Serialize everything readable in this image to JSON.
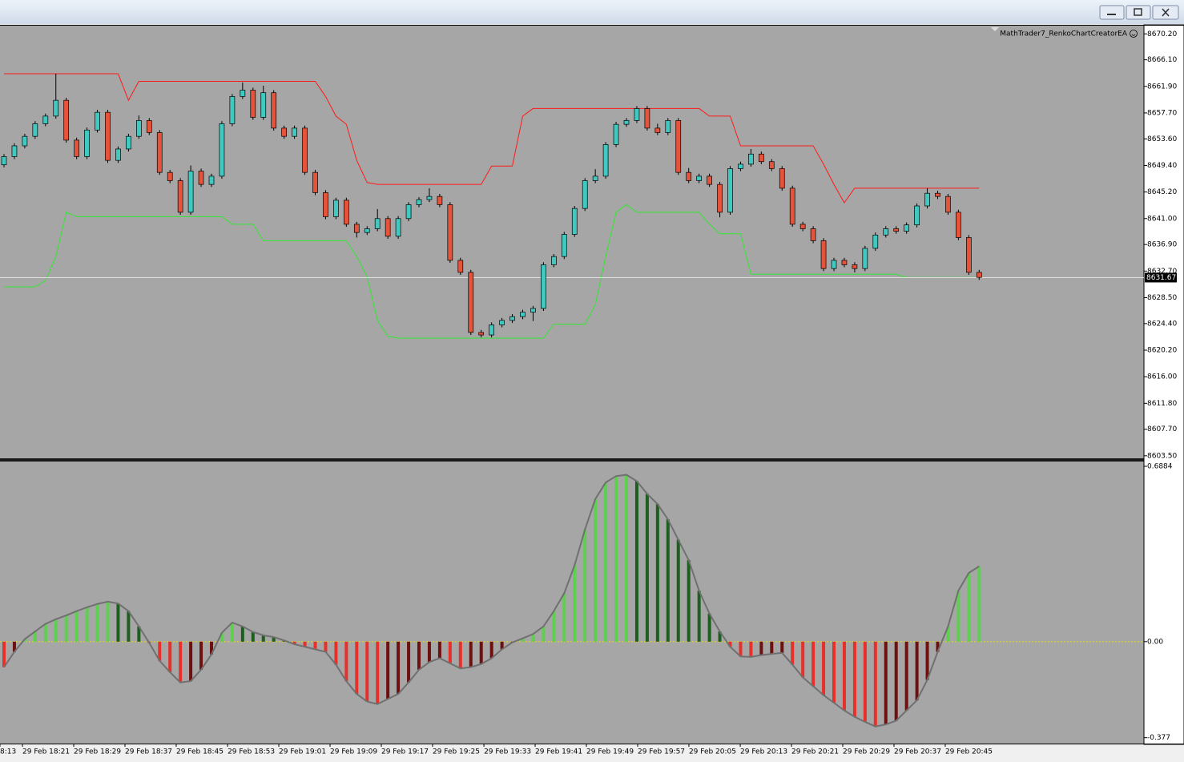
{
  "window": {
    "buttons": [
      "minimize",
      "restore",
      "close"
    ]
  },
  "chart_data": [
    {
      "type": "candlestick",
      "title": "MathTrader7_RenkoChartCreatorEA",
      "up_color": "#3fc9c0",
      "down_color": "#e5533a",
      "candles": [
        [
          8649.5,
          8651.2,
          8649.1,
          8650.8
        ],
        [
          8650.8,
          8652.9,
          8650.4,
          8652.5
        ],
        [
          8652.5,
          8654.4,
          8652.1,
          8654.0
        ],
        [
          8654.0,
          8656.4,
          8653.6,
          8656.0
        ],
        [
          8656.0,
          8657.6,
          8655.6,
          8657.2
        ],
        [
          8657.2,
          8663.9,
          8656.8,
          8659.7
        ],
        [
          8659.7,
          8660.1,
          8653.0,
          8653.4
        ],
        [
          8653.4,
          8653.8,
          8650.4,
          8650.8
        ],
        [
          8650.8,
          8655.4,
          8650.4,
          8655.0
        ],
        [
          8655.0,
          8658.2,
          8654.6,
          8657.8
        ],
        [
          8657.8,
          8658.2,
          8649.8,
          8650.2
        ],
        [
          8650.2,
          8652.4,
          8649.8,
          8652.0
        ],
        [
          8652.0,
          8654.4,
          8651.6,
          8654.0
        ],
        [
          8654.0,
          8657.3,
          8653.6,
          8656.5
        ],
        [
          8656.5,
          8656.9,
          8654.2,
          8654.6
        ],
        [
          8654.6,
          8655.0,
          8647.9,
          8648.3
        ],
        [
          8648.3,
          8648.7,
          8646.6,
          8647.0
        ],
        [
          8647.0,
          8647.4,
          8641.6,
          8642.0
        ],
        [
          8642.0,
          8649.4,
          8641.6,
          8648.5
        ],
        [
          8648.5,
          8648.9,
          8646.0,
          8646.4
        ],
        [
          8646.4,
          8648.1,
          8646.0,
          8647.7
        ],
        [
          8647.7,
          8656.4,
          8647.3,
          8656.0
        ],
        [
          8656.0,
          8660.7,
          8655.6,
          8660.3
        ],
        [
          8660.3,
          8662.5,
          8659.9,
          8661.3
        ],
        [
          8661.3,
          8661.7,
          8656.6,
          8657.0
        ],
        [
          8657.0,
          8662.0,
          8656.6,
          8660.9
        ],
        [
          8660.9,
          8661.3,
          8654.9,
          8655.3
        ],
        [
          8655.3,
          8655.7,
          8653.6,
          8654.0
        ],
        [
          8654.0,
          8655.7,
          8653.6,
          8655.3
        ],
        [
          8655.3,
          8655.7,
          8647.9,
          8648.3
        ],
        [
          8648.3,
          8648.7,
          8644.7,
          8645.1
        ],
        [
          8645.1,
          8645.5,
          8640.9,
          8641.3
        ],
        [
          8641.3,
          8644.3,
          8640.9,
          8643.9
        ],
        [
          8643.9,
          8644.3,
          8639.7,
          8640.1
        ],
        [
          8640.1,
          8640.5,
          8638.0,
          8638.8
        ],
        [
          8638.8,
          8639.8,
          8638.4,
          8639.4
        ],
        [
          8639.4,
          8642.5,
          8639.0,
          8641.0
        ],
        [
          8641.0,
          8641.4,
          8637.8,
          8638.2
        ],
        [
          8638.2,
          8641.4,
          8637.8,
          8641.0
        ],
        [
          8641.0,
          8643.6,
          8640.6,
          8643.2
        ],
        [
          8643.2,
          8644.4,
          8642.8,
          8644.0
        ],
        [
          8644.0,
          8645.8,
          8643.6,
          8644.5
        ],
        [
          8644.5,
          8644.9,
          8642.8,
          8643.2
        ],
        [
          8643.2,
          8643.6,
          8634.0,
          8634.4
        ],
        [
          8634.4,
          8634.8,
          8632.1,
          8632.5
        ],
        [
          8632.5,
          8632.9,
          8622.6,
          8623.0
        ],
        [
          8623.0,
          8623.4,
          8622.2,
          8622.6
        ],
        [
          8622.6,
          8624.6,
          8622.2,
          8624.2
        ],
        [
          8624.2,
          8625.3,
          8623.8,
          8624.9
        ],
        [
          8624.9,
          8625.9,
          8624.5,
          8625.5
        ],
        [
          8625.5,
          8626.6,
          8625.1,
          8626.2
        ],
        [
          8626.2,
          8627.2,
          8624.8,
          8626.8
        ],
        [
          8626.8,
          8634.1,
          8626.4,
          8633.7
        ],
        [
          8633.7,
          8635.4,
          8633.3,
          8635.0
        ],
        [
          8635.0,
          8638.9,
          8634.6,
          8638.5
        ],
        [
          8638.5,
          8643.0,
          8638.1,
          8642.6
        ],
        [
          8642.6,
          8647.4,
          8642.2,
          8647.0
        ],
        [
          8647.0,
          8648.8,
          8646.6,
          8647.7
        ],
        [
          8647.7,
          8653.1,
          8647.3,
          8652.7
        ],
        [
          8652.7,
          8656.3,
          8652.3,
          8655.9
        ],
        [
          8655.9,
          8656.9,
          8655.5,
          8656.5
        ],
        [
          8656.5,
          8658.8,
          8656.1,
          8658.4
        ],
        [
          8658.4,
          8658.8,
          8654.9,
          8655.3
        ],
        [
          8655.3,
          8656.0,
          8654.2,
          8654.6
        ],
        [
          8654.6,
          8656.9,
          8654.2,
          8656.5
        ],
        [
          8656.5,
          8656.9,
          8647.9,
          8648.3
        ],
        [
          8648.3,
          8649.0,
          8646.6,
          8647.0
        ],
        [
          8647.0,
          8648.1,
          8646.6,
          8647.7
        ],
        [
          8647.7,
          8648.1,
          8646.0,
          8646.4
        ],
        [
          8646.4,
          8646.8,
          8641.2,
          8642.0
        ],
        [
          8642.0,
          8649.3,
          8641.6,
          8648.9
        ],
        [
          8648.9,
          8650.0,
          8648.5,
          8649.6
        ],
        [
          8649.6,
          8652.0,
          8649.2,
          8651.2
        ],
        [
          8651.2,
          8651.6,
          8649.6,
          8650.0
        ],
        [
          8650.0,
          8650.4,
          8648.5,
          8648.9
        ],
        [
          8648.9,
          8649.3,
          8645.4,
          8645.8
        ],
        [
          8645.8,
          8646.2,
          8639.7,
          8640.1
        ],
        [
          8640.1,
          8640.5,
          8639.0,
          8639.4
        ],
        [
          8639.4,
          8639.8,
          8637.1,
          8637.5
        ],
        [
          8637.5,
          8637.9,
          8632.7,
          8633.1
        ],
        [
          8633.1,
          8634.8,
          8632.7,
          8634.4
        ],
        [
          8634.4,
          8634.8,
          8633.3,
          8633.7
        ],
        [
          8633.7,
          8634.1,
          8632.5,
          8633.1
        ],
        [
          8633.1,
          8636.7,
          8632.7,
          8636.3
        ],
        [
          8636.3,
          8638.8,
          8635.9,
          8638.4
        ],
        [
          8638.4,
          8639.8,
          8638.0,
          8639.4
        ],
        [
          8639.4,
          8639.8,
          8638.6,
          8639.0
        ],
        [
          8639.0,
          8640.4,
          8638.6,
          8640.0
        ],
        [
          8640.0,
          8643.4,
          8639.6,
          8643.0
        ],
        [
          8643.0,
          8645.8,
          8642.6,
          8645.0
        ],
        [
          8645.0,
          8645.4,
          8644.1,
          8644.5
        ],
        [
          8644.5,
          8644.9,
          8641.6,
          8642.0
        ],
        [
          8642.0,
          8642.4,
          8637.6,
          8638.0
        ],
        [
          8638.0,
          8638.4,
          8632.1,
          8632.5
        ],
        [
          8632.5,
          8632.9,
          8631.3,
          8631.7
        ]
      ],
      "upper_band": {
        "color": "#ff1a1a",
        "values": [
          8663.9,
          8663.9,
          8663.9,
          8663.9,
          8663.9,
          8663.9,
          8663.9,
          8663.9,
          8663.9,
          8663.9,
          8663.9,
          8663.9,
          8659.7,
          8662.7,
          8662.7,
          8662.7,
          8662.7,
          8662.7,
          8662.7,
          8662.7,
          8662.7,
          8662.7,
          8662.7,
          8662.7,
          8662.7,
          8662.7,
          8662.7,
          8662.7,
          8662.7,
          8662.7,
          8662.7,
          8660.3,
          8657.2,
          8655.9,
          8650.2,
          8646.7,
          8646.4,
          8646.4,
          8646.4,
          8646.4,
          8646.4,
          8646.4,
          8646.4,
          8646.4,
          8646.4,
          8646.4,
          8646.4,
          8649.3,
          8649.3,
          8649.3,
          8657.2,
          8658.4,
          8658.4,
          8658.4,
          8658.4,
          8658.4,
          8658.4,
          8658.4,
          8658.4,
          8658.4,
          8658.4,
          8658.4,
          8658.4,
          8658.4,
          8658.4,
          8658.4,
          8658.4,
          8658.4,
          8657.2,
          8657.2,
          8657.2,
          8652.5,
          8652.5,
          8652.5,
          8652.5,
          8652.5,
          8652.5,
          8652.5,
          8652.5,
          8649.6,
          8646.4,
          8643.5,
          8645.8,
          8645.8,
          8645.8,
          8645.8,
          8645.8,
          8645.8,
          8645.8,
          8645.8,
          8645.8,
          8645.8,
          8645.8,
          8645.8,
          8645.8
        ]
      },
      "lower_band": {
        "color": "#33e633",
        "values": [
          8630.2,
          8630.2,
          8630.2,
          8630.2,
          8631.2,
          8635.0,
          8642.0,
          8641.3,
          8641.3,
          8641.3,
          8641.3,
          8641.3,
          8641.3,
          8641.3,
          8641.3,
          8641.3,
          8641.3,
          8641.3,
          8641.3,
          8641.3,
          8641.3,
          8641.3,
          8640.1,
          8640.1,
          8640.1,
          8637.5,
          8637.5,
          8637.5,
          8637.5,
          8637.5,
          8637.5,
          8637.5,
          8637.5,
          8637.5,
          8635.0,
          8631.8,
          8624.9,
          8622.4,
          8622.1,
          8622.1,
          8622.1,
          8622.1,
          8622.1,
          8622.1,
          8622.1,
          8622.1,
          8622.1,
          8622.1,
          8622.1,
          8622.1,
          8622.1,
          8622.1,
          8622.1,
          8624.3,
          8624.3,
          8624.3,
          8624.3,
          8627.4,
          8635.0,
          8642.0,
          8643.2,
          8642.0,
          8642.0,
          8642.0,
          8642.0,
          8642.0,
          8642.0,
          8642.0,
          8640.1,
          8638.6,
          8638.6,
          8638.6,
          8632.2,
          8632.2,
          8632.2,
          8632.2,
          8632.2,
          8632.2,
          8632.2,
          8632.2,
          8632.2,
          8632.2,
          8632.2,
          8632.2,
          8632.2,
          8632.2,
          8632.2,
          8631.7,
          8631.7,
          8631.7,
          8631.7,
          8631.7,
          8631.7,
          8631.7,
          8631.7
        ]
      },
      "last_price": 8631.67,
      "ylim": [
        8603.1,
        8671.5
      ],
      "yticks": [
        {
          "value": 8670.2,
          "label": "8670.20"
        },
        {
          "value": 8666.1,
          "label": "8666.10"
        },
        {
          "value": 8661.9,
          "label": "8661.90"
        },
        {
          "value": 8657.7,
          "label": "8657.70"
        },
        {
          "value": 8653.6,
          "label": "8653.60"
        },
        {
          "value": 8649.4,
          "label": "8649.40"
        },
        {
          "value": 8645.2,
          "label": "8645.20"
        },
        {
          "value": 8641.0,
          "label": "8641.00"
        },
        {
          "value": 8636.9,
          "label": "8636.90"
        },
        {
          "value": 8632.7,
          "label": "8632.70"
        },
        {
          "value": 8628.5,
          "label": "8628.50"
        },
        {
          "value": 8624.4,
          "label": "8624.40"
        },
        {
          "value": 8620.2,
          "label": "8620.20"
        },
        {
          "value": 8616.0,
          "label": "8616.00"
        },
        {
          "value": 8611.8,
          "label": "8611.80"
        },
        {
          "value": 8607.7,
          "label": "8607.70"
        },
        {
          "value": 8603.5,
          "label": "8603.50"
        }
      ]
    },
    {
      "type": "bar",
      "values": [
        -0.1,
        -0.04,
        0.01,
        0.04,
        0.07,
        0.088,
        0.103,
        0.12,
        0.135,
        0.148,
        0.157,
        0.15,
        0.12,
        0.06,
        -0.005,
        -0.075,
        -0.12,
        -0.16,
        -0.155,
        -0.11,
        -0.05,
        0.035,
        0.075,
        0.06,
        0.038,
        0.025,
        0.018,
        0.005,
        -0.01,
        -0.02,
        -0.03,
        -0.04,
        -0.09,
        -0.155,
        -0.205,
        -0.235,
        -0.245,
        -0.225,
        -0.205,
        -0.16,
        -0.11,
        -0.08,
        -0.065,
        -0.085,
        -0.105,
        -0.1,
        -0.088,
        -0.065,
        -0.03,
        -0.003,
        0.013,
        0.03,
        0.06,
        0.12,
        0.19,
        0.3,
        0.44,
        0.56,
        0.625,
        0.65,
        0.655,
        0.63,
        0.58,
        0.54,
        0.48,
        0.4,
        0.32,
        0.2,
        0.11,
        0.04,
        -0.02,
        -0.058,
        -0.06,
        -0.053,
        -0.048,
        -0.044,
        -0.09,
        -0.14,
        -0.175,
        -0.21,
        -0.24,
        -0.27,
        -0.295,
        -0.315,
        -0.333,
        -0.325,
        -0.31,
        -0.27,
        -0.23,
        -0.15,
        -0.04,
        0.06,
        0.2,
        0.27,
        0.296
      ],
      "colors": {
        "rising_positive": "#5fcf4f",
        "falling_positive": "#1e5e1e",
        "falling_negative": "#e8302a",
        "rising_negative": "#6e1010"
      },
      "line_color": "#707070",
      "zero_line_color": "#e8e000",
      "ylim": [
        -0.4,
        0.704
      ],
      "yticks": [
        0.6884,
        {
          "value": 0,
          "label": "0.00"
        },
        -0.377
      ],
      "xticks": [
        {
          "value": -0.39,
          "label": "8:13"
        },
        {
          "value": 1.78,
          "label": "29 Feb 18:21"
        },
        {
          "value": 6.72,
          "label": "29 Feb 18:29"
        },
        {
          "value": 11.66,
          "label": "29 Feb 18:37"
        },
        {
          "value": 16.6,
          "label": "29 Feb 18:45"
        },
        {
          "value": 21.55,
          "label": "29 Feb 18:53"
        },
        {
          "value": 26.49,
          "label": "29 Feb 19:01"
        },
        {
          "value": 31.43,
          "label": "29 Feb 19:09"
        },
        {
          "value": 36.37,
          "label": "29 Feb 19:17"
        },
        {
          "value": 41.31,
          "label": "29 Feb 19:25"
        },
        {
          "value": 46.26,
          "label": "29 Feb 19:33"
        },
        {
          "value": 51.2,
          "label": "29 Feb 19:41"
        },
        {
          "value": 56.14,
          "label": "29 Feb 19:49"
        },
        {
          "value": 61.08,
          "label": "29 Feb 19:57"
        },
        {
          "value": 66.02,
          "label": "29 Feb 20:05"
        },
        {
          "value": 70.97,
          "label": "29 Feb 20:13"
        },
        {
          "value": 75.91,
          "label": "29 Feb 20:21"
        },
        {
          "value": 80.85,
          "label": "29 Feb 20:29"
        },
        {
          "value": 85.79,
          "label": "29 Feb 20:37"
        },
        {
          "value": 90.73,
          "label": "29 Feb 20:45"
        }
      ]
    }
  ]
}
